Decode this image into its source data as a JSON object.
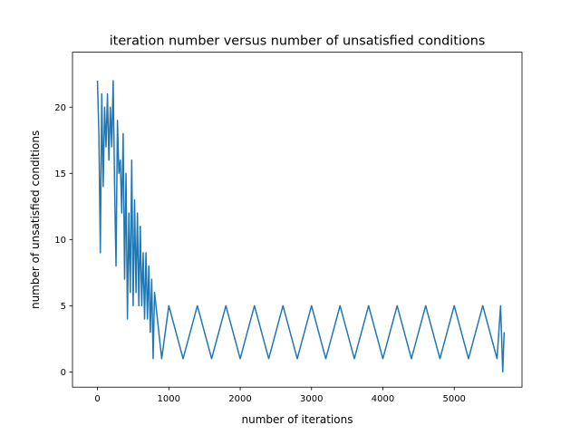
{
  "chart_data": {
    "type": "line",
    "title": "iteration number versus number of unsatisfied conditions",
    "xlabel": "number of iterations",
    "ylabel": "number of unsatisfied conditions",
    "xlim": [
      -350,
      5950
    ],
    "ylim": [
      -1.15,
      24.15
    ],
    "xticks": [
      0,
      1000,
      2000,
      3000,
      4000,
      5000
    ],
    "xtick_labels": [
      "0",
      "1000",
      "2000",
      "3000",
      "4000",
      "5000"
    ],
    "yticks": [
      0,
      5,
      10,
      15,
      20
    ],
    "ytick_labels": [
      "0",
      "5",
      "10",
      "15",
      "20"
    ],
    "grid": false,
    "legend": "none",
    "series_color": "#1f77b4",
    "series": [
      {
        "x": [
          0,
          20,
          40,
          60,
          80,
          100,
          120,
          140,
          160,
          180,
          200,
          220,
          240,
          260,
          280,
          300,
          320,
          340,
          360,
          380,
          400,
          420,
          440,
          460,
          480,
          500,
          520,
          540,
          560,
          580,
          600,
          620,
          640,
          660,
          680,
          700,
          720,
          740,
          760,
          780,
          800,
          900,
          1000,
          1200,
          1400,
          1600,
          1800,
          2000,
          2200,
          2400,
          2600,
          2800,
          3000,
          3200,
          3400,
          3600,
          3800,
          4000,
          4200,
          4400,
          4600,
          4800,
          5000,
          5200,
          5400,
          5600,
          5650,
          5680,
          5700
        ],
        "y": [
          22,
          18,
          9,
          21,
          14,
          20,
          17,
          21,
          16,
          20,
          17,
          22,
          14,
          8,
          19,
          15,
          16,
          12,
          18,
          7,
          15,
          4,
          12,
          6,
          16,
          5,
          13,
          6,
          12,
          5,
          11,
          5,
          9,
          4,
          9,
          4,
          8,
          3,
          7,
          1,
          6,
          1,
          5,
          1,
          5,
          1,
          5,
          1,
          5,
          1,
          5,
          1,
          5,
          1,
          5,
          1,
          5,
          1,
          5,
          1,
          5,
          1,
          5,
          1,
          5,
          1,
          5,
          0,
          3
        ]
      }
    ]
  }
}
